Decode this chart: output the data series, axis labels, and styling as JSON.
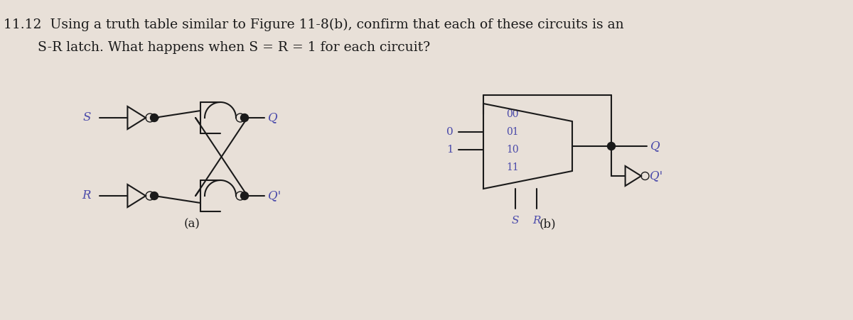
{
  "bg_color": "#e8e0d8",
  "line_color": "#1a1a1a",
  "text_color": "#4a4aaa",
  "label_color": "#1a1a1a",
  "title_line1": "11.12  Using a truth table similar to Figure 11-8(b), confirm that each of these circuits is an",
  "title_line2": "        S-R latch. What happens when S = R = 1 for each circuit?",
  "title_fontsize": 13.5,
  "caption_a": "(a)",
  "caption_b": "(b)"
}
